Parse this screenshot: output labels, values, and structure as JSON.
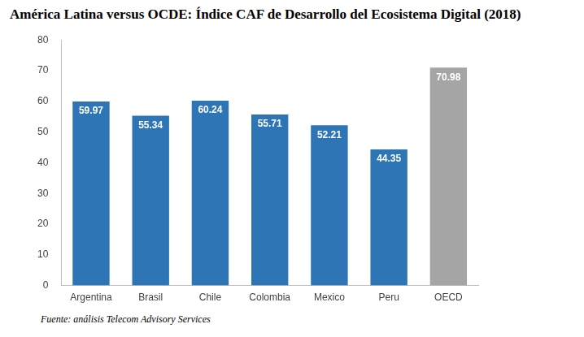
{
  "chart_data": {
    "type": "bar",
    "title": "América Latina versus OCDE: Índice CAF de Desarrollo del Ecosistema Digital (2018)",
    "annotations": [
      "Fuente: análisis Telecom Advisory Services"
    ],
    "categories": [
      "Argentina",
      "Brasil",
      "Chile",
      "Colombia",
      "Mexico",
      "Peru",
      "OECD"
    ],
    "values": [
      59.97,
      55.34,
      60.24,
      55.71,
      52.21,
      44.35,
      70.98
    ],
    "colors": [
      "#2e75b6",
      "#2e75b6",
      "#2e75b6",
      "#2e75b6",
      "#2e75b6",
      "#2e75b6",
      "#a5a5a5"
    ],
    "ylim": [
      0,
      80
    ],
    "yticks": [
      0,
      10,
      20,
      30,
      40,
      50,
      60,
      70,
      80
    ],
    "grid": false,
    "data_labels": true
  }
}
